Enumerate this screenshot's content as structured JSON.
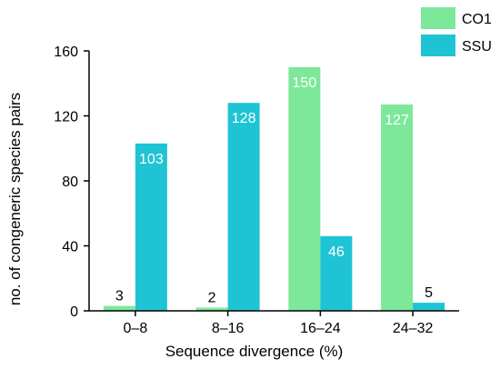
{
  "chart_data": {
    "type": "bar",
    "title": "",
    "xlabel": "Sequence divergence (%)",
    "ylabel": "no. of congeneric species pairs",
    "categories": [
      "0–8",
      "8–16",
      "16–24",
      "24–32"
    ],
    "series": [
      {
        "name": "CO1",
        "color": "#7de89a",
        "values": [
          3,
          2,
          150,
          127
        ]
      },
      {
        "name": "SSU",
        "color": "#1fc4d4",
        "values": [
          103,
          128,
          46,
          5
        ]
      }
    ],
    "data_labels": [
      [
        "3",
        "2",
        "150",
        "127"
      ],
      [
        "103",
        "128",
        "46",
        "5"
      ]
    ],
    "ylim": [
      0,
      160
    ],
    "yticks": [
      0,
      40,
      80,
      120,
      160
    ],
    "grid": false,
    "legend_position": "top-right"
  }
}
